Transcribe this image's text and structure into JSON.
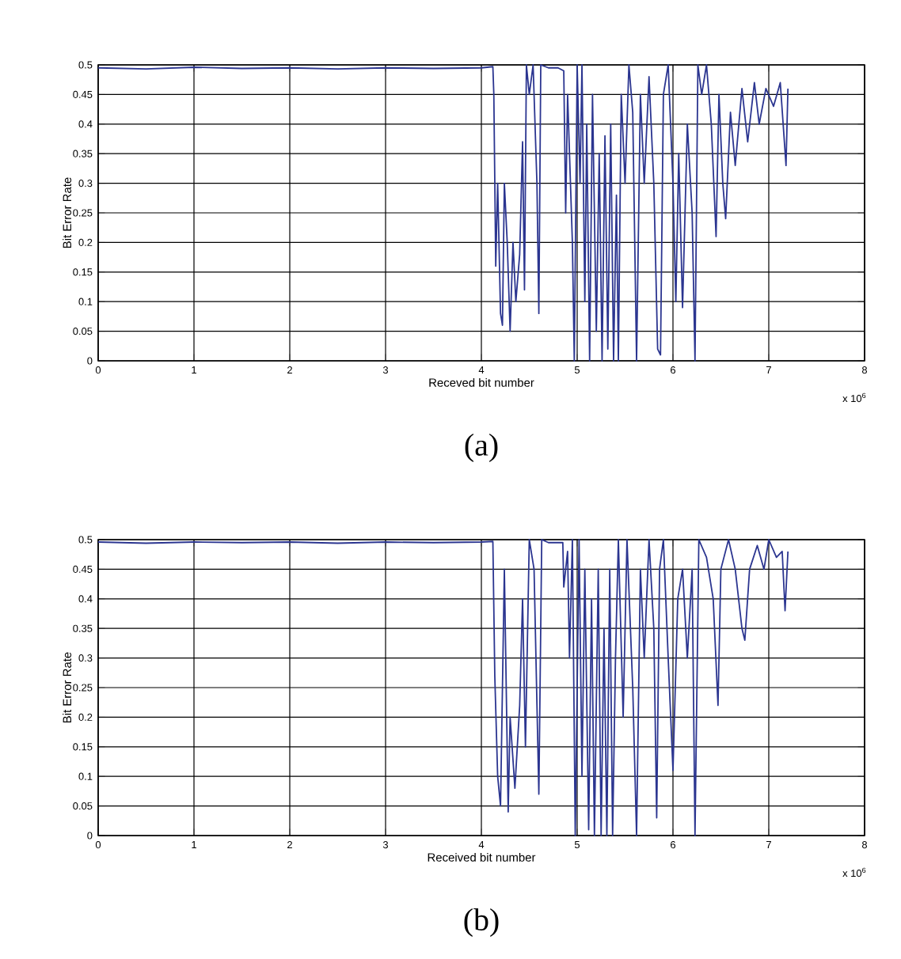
{
  "chart_data": [
    {
      "type": "line",
      "title": "(a)",
      "xlabel": "Receved bit number",
      "ylabel": "Bit Error Rate",
      "annotations": [
        "x 10$^{6}$"
      ],
      "color": "#2b3590",
      "grid": true,
      "xlim": [
        0,
        8
      ],
      "ylim": [
        0,
        0.5
      ],
      "xticks": [
        0,
        1,
        2,
        3,
        4,
        5,
        6,
        7,
        8
      ],
      "yticks": [
        0,
        0.05,
        0.1,
        0.15,
        0.2,
        0.25,
        0.3,
        0.35,
        0.4,
        0.45,
        0.5
      ],
      "x": [
        0,
        0.5,
        1,
        1.5,
        2,
        2.5,
        3,
        3.5,
        4.0,
        4.12,
        4.13,
        4.15,
        4.17,
        4.2,
        4.22,
        4.24,
        4.27,
        4.3,
        4.33,
        4.36,
        4.4,
        4.43,
        4.45,
        4.47,
        4.5,
        4.54,
        4.58,
        4.6,
        4.62,
        4.7,
        4.8,
        4.86,
        4.88,
        4.9,
        4.95,
        4.97,
        5.0,
        5.03,
        5.05,
        5.08,
        5.1,
        5.13,
        5.16,
        5.2,
        5.23,
        5.26,
        5.29,
        5.32,
        5.35,
        5.38,
        5.41,
        5.43,
        5.46,
        5.5,
        5.54,
        5.58,
        5.62,
        5.66,
        5.7,
        5.75,
        5.8,
        5.84,
        5.87,
        5.9,
        5.95,
        6.0,
        6.03,
        6.06,
        6.1,
        6.15,
        6.2,
        6.23,
        6.26,
        6.3,
        6.35,
        6.4,
        6.45,
        6.48,
        6.52,
        6.55,
        6.6,
        6.65,
        6.72,
        6.78,
        6.85,
        6.9,
        6.97,
        7.05,
        7.12,
        7.18,
        7.2
      ],
      "values": [
        0.495,
        0.493,
        0.496,
        0.494,
        0.495,
        0.493,
        0.495,
        0.494,
        0.495,
        0.497,
        0.45,
        0.16,
        0.3,
        0.08,
        0.06,
        0.3,
        0.2,
        0.05,
        0.2,
        0.1,
        0.18,
        0.37,
        0.12,
        0.5,
        0.45,
        0.5,
        0.3,
        0.08,
        0.5,
        0.495,
        0.495,
        0.49,
        0.25,
        0.45,
        0.2,
        0,
        0.5,
        0.3,
        0.5,
        0.1,
        0.4,
        0,
        0.45,
        0.05,
        0.35,
        0,
        0.38,
        0.02,
        0.4,
        0,
        0.28,
        0,
        0.45,
        0.3,
        0.5,
        0.42,
        0,
        0.45,
        0.3,
        0.48,
        0.3,
        0.02,
        0.01,
        0.45,
        0.5,
        0.3,
        0.1,
        0.35,
        0.09,
        0.4,
        0.25,
        0,
        0.5,
        0.45,
        0.5,
        0.4,
        0.21,
        0.45,
        0.3,
        0.24,
        0.42,
        0.33,
        0.46,
        0.37,
        0.47,
        0.4,
        0.46,
        0.43,
        0.47,
        0.33,
        0.46
      ]
    },
    {
      "type": "line",
      "title": "(b)",
      "xlabel": "Received bit number",
      "ylabel": "Bit Error Rate",
      "annotations": [
        "x 10$^{6}$"
      ],
      "color": "#2b3590",
      "grid": true,
      "xlim": [
        0,
        8
      ],
      "ylim": [
        0,
        0.5
      ],
      "xticks": [
        0,
        1,
        2,
        3,
        4,
        5,
        6,
        7,
        8
      ],
      "yticks": [
        0,
        0.05,
        0.1,
        0.15,
        0.2,
        0.25,
        0.3,
        0.35,
        0.4,
        0.45,
        0.5
      ],
      "x": [
        0,
        0.5,
        1,
        1.5,
        2,
        2.5,
        3,
        3.5,
        4.0,
        4.12,
        4.14,
        4.17,
        4.2,
        4.24,
        4.28,
        4.3,
        4.35,
        4.4,
        4.43,
        4.46,
        4.5,
        4.55,
        4.6,
        4.63,
        4.7,
        4.85,
        4.86,
        4.9,
        4.92,
        4.95,
        4.98,
        5.02,
        5.05,
        5.08,
        5.12,
        5.15,
        5.18,
        5.22,
        5.25,
        5.28,
        5.31,
        5.34,
        5.37,
        5.4,
        5.43,
        5.48,
        5.52,
        5.58,
        5.62,
        5.66,
        5.7,
        5.75,
        5.8,
        5.83,
        5.86,
        5.9,
        5.95,
        6.0,
        6.05,
        6.1,
        6.15,
        6.2,
        6.23,
        6.27,
        6.35,
        6.42,
        6.47,
        6.5,
        6.58,
        6.65,
        6.72,
        6.75,
        6.8,
        6.88,
        6.95,
        7.0,
        7.08,
        7.14,
        7.17,
        7.2
      ],
      "values": [
        0.496,
        0.494,
        0.496,
        0.495,
        0.496,
        0.494,
        0.496,
        0.495,
        0.496,
        0.497,
        0.27,
        0.1,
        0.05,
        0.45,
        0.04,
        0.2,
        0.08,
        0.22,
        0.4,
        0.15,
        0.5,
        0.45,
        0.07,
        0.5,
        0.495,
        0.495,
        0.42,
        0.48,
        0.3,
        0.5,
        0,
        0.5,
        0.1,
        0.45,
        0.01,
        0.4,
        0,
        0.45,
        0,
        0.35,
        0,
        0.45,
        0,
        0.3,
        0.5,
        0.2,
        0.5,
        0.25,
        0,
        0.45,
        0.3,
        0.5,
        0.35,
        0.03,
        0.45,
        0.5,
        0.3,
        0.11,
        0.4,
        0.45,
        0.3,
        0.45,
        0,
        0.5,
        0.47,
        0.4,
        0.22,
        0.45,
        0.5,
        0.45,
        0.35,
        0.33,
        0.45,
        0.49,
        0.45,
        0.5,
        0.47,
        0.48,
        0.38,
        0.48
      ]
    }
  ]
}
